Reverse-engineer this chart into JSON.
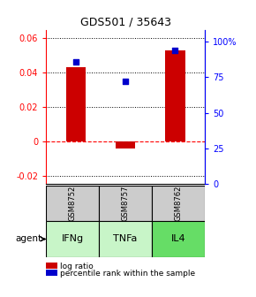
{
  "title": "GDS501 / 35643",
  "samples": [
    "GSM8752",
    "GSM8757",
    "GSM8762"
  ],
  "agents": [
    "IFNg",
    "TNFa",
    "IL4"
  ],
  "log_ratio": [
    0.043,
    -0.004,
    0.053
  ],
  "percentile_rank": [
    0.86,
    0.72,
    0.94
  ],
  "bar_color": "#cc0000",
  "dot_color": "#0000cc",
  "bar_width": 0.4,
  "ylim_left": [
    -0.025,
    0.065
  ],
  "ylim_right": [
    0.0,
    1.0833
  ],
  "yticks_left": [
    -0.02,
    0.0,
    0.02,
    0.04,
    0.06
  ],
  "ytick_labels_left": [
    "-0.02",
    "0",
    "0.02",
    "0.04",
    "0.06"
  ],
  "yticks_right": [
    0.0,
    0.25,
    0.5,
    0.75,
    1.0
  ],
  "ytick_labels_right": [
    "0",
    "25",
    "50",
    "75",
    "100%"
  ],
  "agent_colors": [
    "#c8f5c8",
    "#c8f5c8",
    "#66dd66"
  ],
  "sample_bg": "#cccccc",
  "legend_red": "log ratio",
  "legend_blue": "percentile rank within the sample",
  "agent_label": "agent"
}
